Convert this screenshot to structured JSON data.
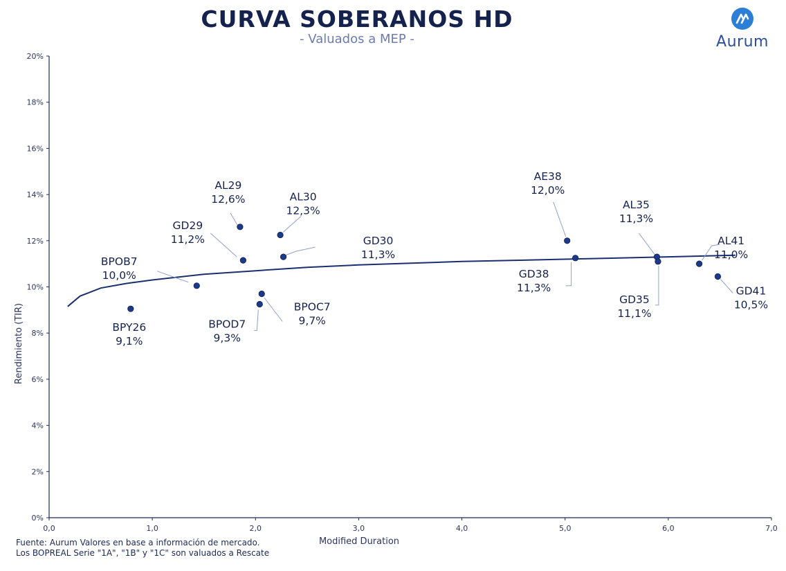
{
  "header": {
    "title": "CURVA SOBERANOS HD",
    "subtitle": "- Valuados a MEP -"
  },
  "logo": {
    "text": "Aurum",
    "icon": "aurum-logo-icon"
  },
  "footer": {
    "line1": "Fuente: Aurum Valores en base a información de mercado.",
    "line2": "Los BOPREAL Serie \"1A\", \"1B\" y \"1C\" son valuados a Rescate"
  },
  "colors": {
    "primary": "#15224d",
    "curve": "#1a2f6e",
    "point": "#1d3a8a",
    "leader": "#8fa0c8",
    "axis": "#1b2a55"
  },
  "chart_data": {
    "type": "scatter",
    "xlabel": "Modified Duration",
    "ylabel": "Rendimiento (TIR)",
    "xlim": [
      0,
      7
    ],
    "ylim": [
      0,
      20
    ],
    "x_ticks": [
      "0,0",
      "1,0",
      "2,0",
      "3,0",
      "4,0",
      "5,0",
      "6,0",
      "7,0"
    ],
    "y_ticks": [
      "0%",
      "2%",
      "4%",
      "6%",
      "8%",
      "10%",
      "12%",
      "14%",
      "16%",
      "18%",
      "20%"
    ],
    "grid": false,
    "points": [
      {
        "name": "BPY26",
        "label": "9,1%",
        "x": 0.79,
        "y": 9.05
      },
      {
        "name": "BPOB7",
        "label": "10,0%",
        "x": 1.43,
        "y": 10.05
      },
      {
        "name": "GD29",
        "label": "11,2%",
        "x": 1.88,
        "y": 11.15
      },
      {
        "name": "AL29",
        "label": "12,6%",
        "x": 1.85,
        "y": 12.6
      },
      {
        "name": "BPOD7",
        "label": "9,3%",
        "x": 2.04,
        "y": 9.25
      },
      {
        "name": "BPOC7",
        "label": "9,7%",
        "x": 2.06,
        "y": 9.7
      },
      {
        "name": "AL30",
        "label": "12,3%",
        "x": 2.24,
        "y": 12.25
      },
      {
        "name": "GD30",
        "label": "11,3%",
        "x": 2.27,
        "y": 11.3
      },
      {
        "name": "AE38",
        "label": "12,0%",
        "x": 5.02,
        "y": 12.0
      },
      {
        "name": "GD38",
        "label": "11,3%",
        "x": 5.1,
        "y": 11.25
      },
      {
        "name": "AL35",
        "label": "11,3%",
        "x": 5.89,
        "y": 11.3
      },
      {
        "name": "GD35",
        "label": "11,1%",
        "x": 5.9,
        "y": 11.1
      },
      {
        "name": "AL41",
        "label": "11,0%",
        "x": 6.3,
        "y": 11.0
      },
      {
        "name": "GD41",
        "label": "10,5%",
        "x": 6.48,
        "y": 10.45
      }
    ],
    "trend_curve": {
      "x": [
        0.18,
        0.3,
        0.5,
        0.75,
        1.0,
        1.5,
        2.0,
        2.5,
        3.0,
        4.0,
        5.0,
        6.0,
        6.65
      ],
      "y": [
        9.15,
        9.6,
        9.95,
        10.15,
        10.3,
        10.55,
        10.7,
        10.85,
        10.95,
        11.1,
        11.2,
        11.3,
        11.37
      ]
    }
  }
}
